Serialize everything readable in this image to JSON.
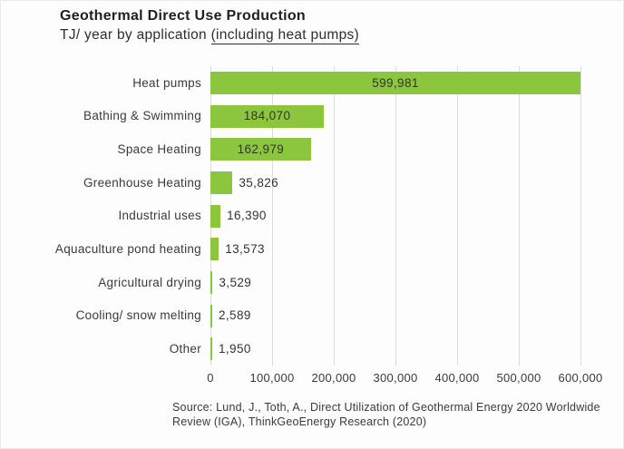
{
  "header": {
    "title": "Geothermal Direct Use Production",
    "subtitle_prefix": "TJ/ year by application ",
    "subtitle_underlined": "(including heat pumps)"
  },
  "source": {
    "line1": "Source: Lund, J., Toth, A., Direct Utilization of Geothermal Energy 2020 Worldwide",
    "line2": "Review (IGA), ThinkGeoEnergy Research (2020)"
  },
  "colors": {
    "bar": "#8CC63F",
    "grid": "#DCDCDC",
    "text": "#3A3A3A",
    "title": "#1F1F1F"
  },
  "chart_data": {
    "type": "bar",
    "orientation": "horizontal",
    "title": "Geothermal Direct Use Production",
    "subtitle": "TJ/ year by application (including heat pumps)",
    "xlabel": "",
    "ylabel": "",
    "categories": [
      "Heat pumps",
      "Bathing & Swimming",
      "Space Heating",
      "Greenhouse Heating",
      "Industrial uses",
      "Aquaculture pond heating",
      "Agricultural drying",
      "Cooling/ snow melting",
      "Other"
    ],
    "values": [
      599981,
      184070,
      162979,
      35826,
      16390,
      13573,
      3529,
      2589,
      1950
    ],
    "value_labels": [
      "599,981",
      "184,070",
      "162,979",
      "35,826",
      "16,390",
      "13,573",
      "3,529",
      "2,589",
      "1,950"
    ],
    "xlim": [
      0,
      600000
    ],
    "x_ticks": [
      0,
      100000,
      200000,
      300000,
      400000,
      500000,
      600000
    ],
    "x_tick_labels": [
      "0",
      "100,000",
      "200,000",
      "300,000",
      "400,000",
      "500,000",
      "600,000"
    ],
    "grid": true,
    "legend": false,
    "bar_color": "#8CC63F"
  }
}
